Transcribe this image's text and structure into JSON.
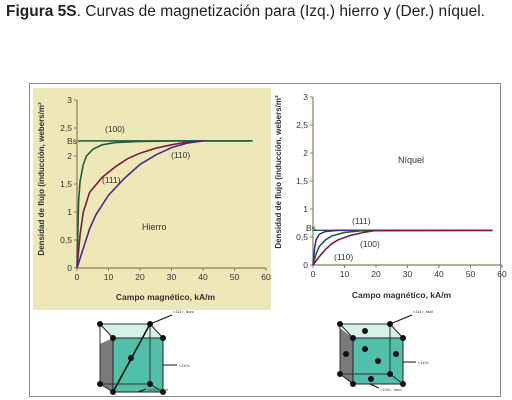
{
  "caption": {
    "lead": "Figura 5S",
    "text": ". Curvas de magnetización para (Izq.) hierro y (Der.) níquel."
  },
  "colors": {
    "panel_bg": "#eee7b8",
    "axis": "#8a7d55",
    "curve_100": "#1d5f3b",
    "curve_110": "#7e1c3e",
    "curve_111": "#4a2a8a",
    "saturation": "#1f5a3a",
    "cube_face": "#3fb8a0",
    "cube_side": "#6e6e6e"
  },
  "chart_data": [
    {
      "type": "line",
      "panel": "left",
      "material_label": "Hierro",
      "xlabel": "Campo magnético, kA/m",
      "ylabel": "Densidad de flujo (inducción, webers/m²",
      "xlim": [
        0,
        60
      ],
      "ylim": [
        0,
        3
      ],
      "xticks": [
        "0",
        "10",
        "20",
        "30",
        "40",
        "50",
        "60"
      ],
      "yticks": [
        "0",
        "0,5",
        "1",
        "1,5",
        "2",
        "2,5",
        "3"
      ],
      "saturation_label": "Bs",
      "saturation_value": 2.27,
      "series": [
        {
          "name": "(100)",
          "x": [
            0,
            0.5,
            1,
            2,
            3,
            5,
            8,
            12,
            20,
            30,
            40,
            55
          ],
          "y": [
            0,
            1.2,
            1.55,
            1.85,
            2.0,
            2.12,
            2.2,
            2.24,
            2.26,
            2.27,
            2.27,
            2.27
          ]
        },
        {
          "name": "(110)",
          "x": [
            0,
            1,
            2,
            4,
            8,
            12,
            16,
            20,
            25,
            30,
            35,
            40
          ],
          "y": [
            0,
            0.6,
            1.0,
            1.35,
            1.62,
            1.8,
            1.95,
            2.05,
            2.14,
            2.2,
            2.25,
            2.27
          ]
        },
        {
          "name": "(111)",
          "x": [
            0,
            2,
            4,
            6,
            10,
            15,
            20,
            25,
            30,
            35,
            40
          ],
          "y": [
            0,
            0.35,
            0.7,
            0.95,
            1.3,
            1.6,
            1.85,
            2.02,
            2.15,
            2.23,
            2.27
          ]
        }
      ]
    },
    {
      "type": "line",
      "panel": "right",
      "material_label": "Níquel",
      "xlabel": "Campo magnético, kA/m",
      "ylabel": "Densidad de flujo (inducción, webers/m²",
      "xlim": [
        0,
        60
      ],
      "ylim": [
        0,
        3
      ],
      "xticks": [
        "0",
        "10",
        "20",
        "30",
        "40",
        "50",
        "60"
      ],
      "yticks": [
        "0",
        "0,5",
        "1",
        "1,5",
        "2",
        "2,5",
        "3"
      ],
      "saturation_label": "Bs",
      "saturation_value": 0.62,
      "series": [
        {
          "name": "(111)",
          "x": [
            0,
            0.5,
            1,
            2,
            4,
            8,
            15,
            57
          ],
          "y": [
            0,
            0.3,
            0.45,
            0.55,
            0.6,
            0.62,
            0.62,
            0.62
          ]
        },
        {
          "name": "(100)",
          "x": [
            0,
            1,
            2,
            4,
            6,
            10,
            15,
            57
          ],
          "y": [
            0,
            0.2,
            0.33,
            0.45,
            0.52,
            0.58,
            0.61,
            0.62
          ]
        },
        {
          "name": "(110)",
          "x": [
            0,
            2,
            4,
            6,
            8,
            12,
            16,
            20,
            57
          ],
          "y": [
            0,
            0.15,
            0.28,
            0.38,
            0.45,
            0.53,
            0.58,
            0.62,
            0.62
          ]
        }
      ]
    }
  ],
  "cubes": [
    {
      "labels": [
        "<111>, duro",
        "<110>",
        "<100>, fácil"
      ]
    },
    {
      "labels": [
        "<111>, fácil",
        "<110>",
        "<100>, duro"
      ]
    }
  ]
}
